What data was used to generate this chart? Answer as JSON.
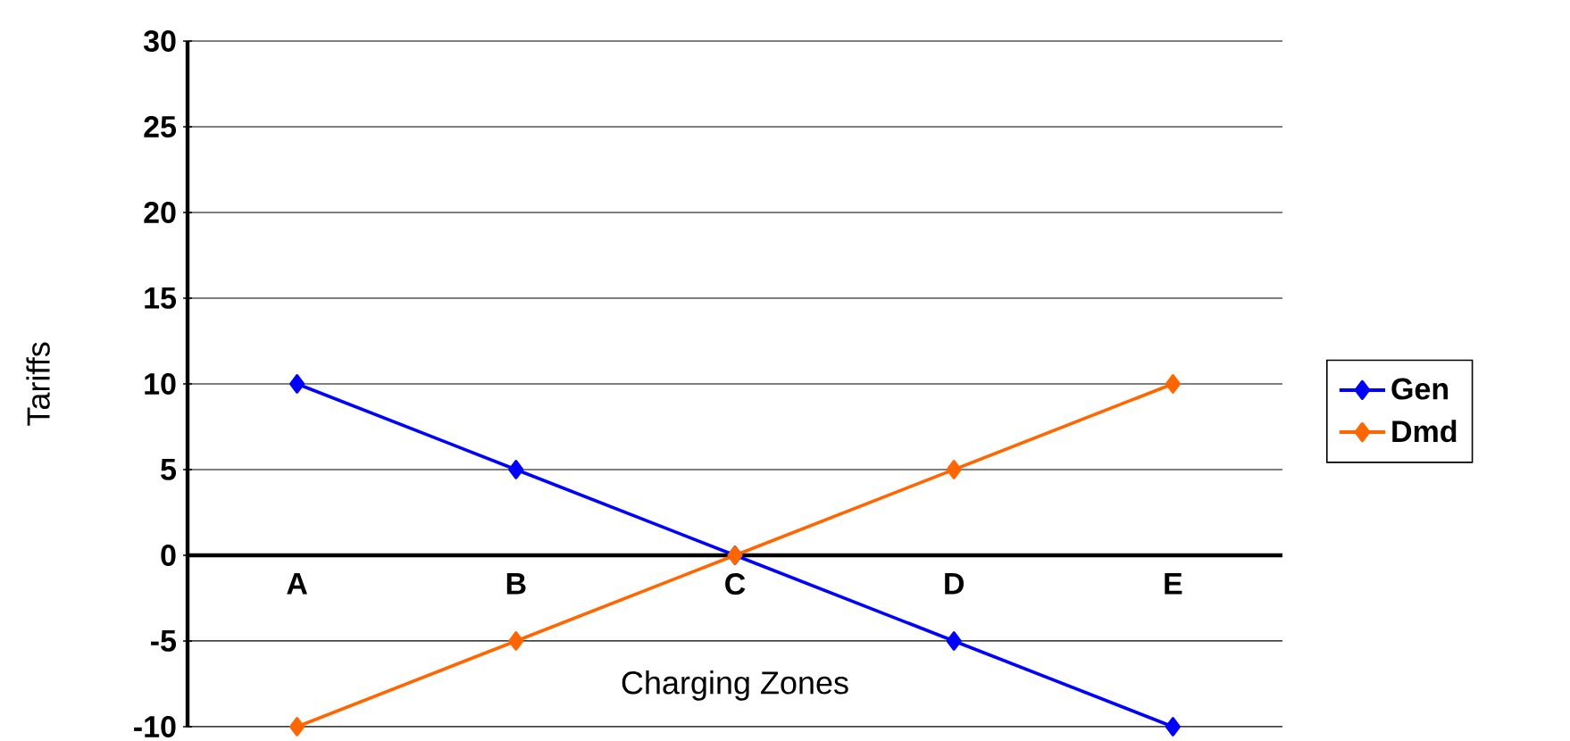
{
  "chart_data": {
    "type": "line",
    "xlabel": "Charging Zones",
    "ylabel": "Tariffs",
    "categories": [
      "A",
      "B",
      "C",
      "D",
      "E"
    ],
    "series": [
      {
        "name": "Gen",
        "color": "#0000ff",
        "values": [
          10,
          5,
          0,
          -5,
          -10
        ]
      },
      {
        "name": "Dmd",
        "color": "#ff6600",
        "values": [
          -10,
          -5,
          0,
          5,
          10
        ]
      }
    ],
    "ylim": [
      -10,
      30
    ],
    "yticks": [
      -10,
      -5,
      0,
      5,
      10,
      15,
      20,
      25,
      30
    ],
    "grid": "y",
    "legend": "right",
    "marker": "diamond",
    "line_style": "solid"
  }
}
